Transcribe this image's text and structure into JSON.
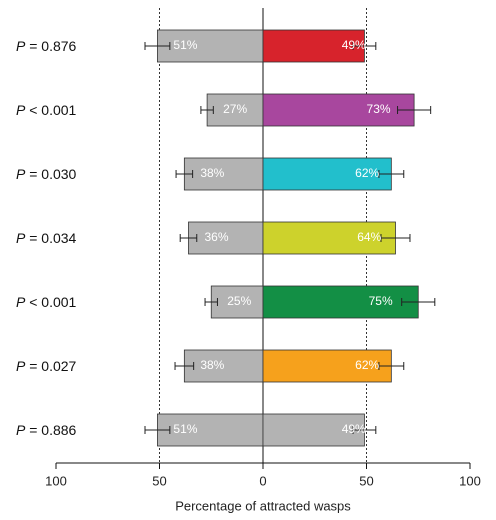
{
  "chart_data": {
    "type": "diverging-bar",
    "categories": [
      "P = 0.876",
      "P < 0.001",
      "P = 0.030",
      "P = 0.034",
      "P < 0.001",
      "P = 0.027",
      "P = 0.886"
    ],
    "series": [
      {
        "color": "#b3b3b3",
        "values": [
          -51,
          -27,
          -38,
          -36,
          -25,
          -38,
          -51
        ],
        "errors": [
          6,
          3,
          4,
          4,
          3,
          4.5,
          6
        ],
        "value_labels": [
          "51%",
          "27%",
          "38%",
          "36%",
          "25%",
          "38%",
          "51%"
        ]
      },
      {
        "colors": [
          "#d7232c",
          "#a8479e",
          "#22bfcc",
          "#cdd22c",
          "#138f45",
          "#f6a11c",
          "#b3b3b3"
        ],
        "values": [
          49,
          73,
          62,
          64,
          75,
          62,
          49
        ],
        "errors": [
          5.5,
          8,
          6,
          7,
          8,
          6,
          5.5
        ],
        "value_labels": [
          "49%",
          "73%",
          "62%",
          "64%",
          "75%",
          "62%",
          "49%"
        ]
      }
    ],
    "xlabel": "Percentage of attracted wasps",
    "xlim": [
      -100,
      100
    ],
    "xticks": [
      {
        "value": -100,
        "label": "100"
      },
      {
        "value": -50,
        "label": "50"
      },
      0,
      50,
      100
    ],
    "reference_lines": [
      -50,
      50
    ]
  }
}
